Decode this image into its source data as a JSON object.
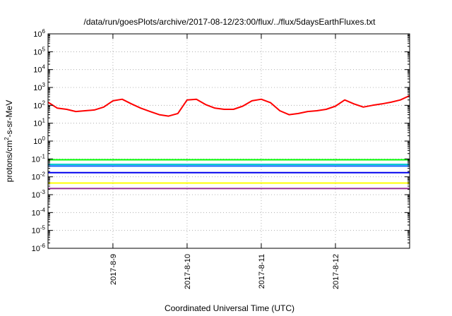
{
  "chart_data": {
    "type": "line",
    "title": "/data/run/goesPlots/archive/2017-08-12/23:00/flux/../flux/5daysEarthFluxes.txt",
    "xlabel": "Coordinated Universal Time (UTC)",
    "ylabel": "protons/cm2-s-sr-MeV",
    "ylabel_parts": [
      "protons/cm",
      "2",
      "-s-sr-MeV"
    ],
    "y_scale": "log",
    "ylim_exp": [
      -6,
      6
    ],
    "xlim": [
      "2017-08-08 03:00",
      "2017-08-13 00:00"
    ],
    "x_ticks": [
      "2017-8-9",
      "2017-8-10",
      "2017-8-11",
      "2017-8-12"
    ],
    "grid": true,
    "legend": "none",
    "series": [
      {
        "color": "#ff0000",
        "x": [
          "2017-08-08 03:00",
          "2017-08-08 06:00",
          "2017-08-08 09:00",
          "2017-08-08 12:00",
          "2017-08-08 15:00",
          "2017-08-08 18:00",
          "2017-08-08 21:00",
          "2017-08-09 00:00",
          "2017-08-09 03:00",
          "2017-08-09 06:00",
          "2017-08-09 09:00",
          "2017-08-09 12:00",
          "2017-08-09 15:00",
          "2017-08-09 18:00",
          "2017-08-09 21:00",
          "2017-08-10 00:00",
          "2017-08-10 03:00",
          "2017-08-10 06:00",
          "2017-08-10 09:00",
          "2017-08-10 12:00",
          "2017-08-10 15:00",
          "2017-08-10 18:00",
          "2017-08-10 21:00",
          "2017-08-11 00:00",
          "2017-08-11 03:00",
          "2017-08-11 06:00",
          "2017-08-11 09:00",
          "2017-08-11 12:00",
          "2017-08-11 15:00",
          "2017-08-11 18:00",
          "2017-08-11 21:00",
          "2017-08-12 00:00",
          "2017-08-12 03:00",
          "2017-08-12 06:00",
          "2017-08-12 09:00",
          "2017-08-12 12:00",
          "2017-08-12 15:00",
          "2017-08-12 18:00",
          "2017-08-12 21:00",
          "2017-08-13 00:00"
        ],
        "y": [
          150,
          70,
          60,
          45,
          50,
          55,
          80,
          180,
          220,
          120,
          70,
          45,
          30,
          25,
          35,
          200,
          220,
          110,
          70,
          60,
          60,
          90,
          180,
          220,
          140,
          50,
          30,
          35,
          45,
          50,
          60,
          90,
          200,
          120,
          80,
          100,
          120,
          150,
          200,
          350
        ]
      },
      {
        "color": "#00ff00",
        "x": [
          "2017-08-08 03:00",
          "2017-08-13 00:00"
        ],
        "y": [
          0.09,
          0.09
        ]
      },
      {
        "color": "#00cccc",
        "x": [
          "2017-08-08 03:00",
          "2017-08-13 00:00"
        ],
        "y": [
          0.05,
          0.05
        ]
      },
      {
        "color": "#0066ff",
        "x": [
          "2017-08-08 03:00",
          "2017-08-13 00:00"
        ],
        "y": [
          0.04,
          0.04
        ]
      },
      {
        "color": "#0000ee",
        "x": [
          "2017-08-08 03:00",
          "2017-08-13 00:00"
        ],
        "y": [
          0.017,
          0.017
        ]
      },
      {
        "color": "#ffff00",
        "x": [
          "2017-08-08 03:00",
          "2017-08-13 00:00"
        ],
        "y": [
          0.0045,
          0.0045
        ]
      },
      {
        "color": "#993399",
        "x": [
          "2017-08-08 03:00",
          "2017-08-13 00:00"
        ],
        "y": [
          0.0022,
          0.0022
        ]
      }
    ]
  }
}
